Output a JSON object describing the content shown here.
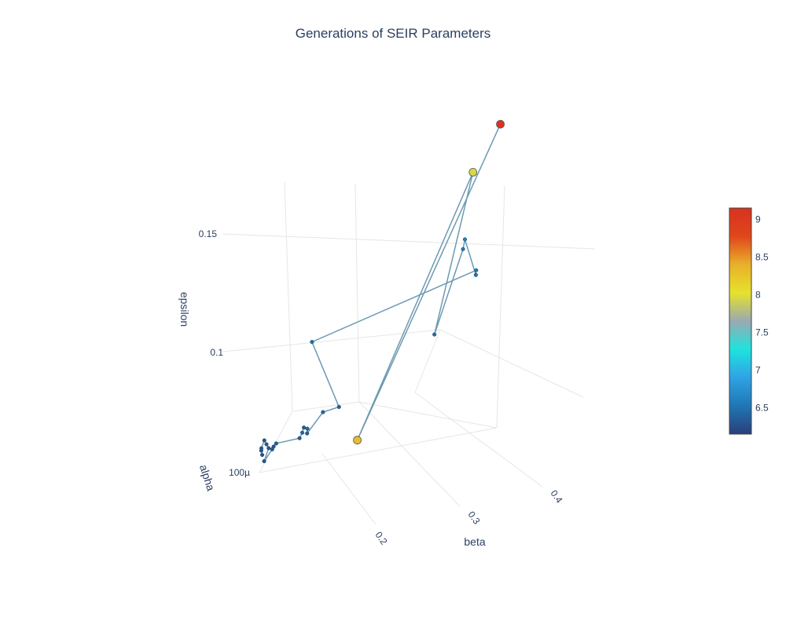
{
  "chart_data": {
    "type": "scatter3d",
    "title": "Generations of SEIR Parameters",
    "axes": {
      "x": {
        "label": "beta",
        "ticks": [
          "0.2",
          "0.3",
          "0.4"
        ],
        "range": [
          0.15,
          0.45
        ]
      },
      "y": {
        "label": "epsilon",
        "ticks": [
          "0.1",
          "0.15"
        ],
        "range": [
          0.05,
          0.17
        ]
      },
      "z": {
        "label": "alpha",
        "ticks": [
          "100µ"
        ]
      }
    },
    "colorbar": {
      "ticks": [
        "6.5",
        "7",
        "7.5",
        "8",
        "8.5",
        "9"
      ],
      "range": [
        6.15,
        9.15
      ],
      "colors": [
        "#2a3f7a",
        "#1f77b4",
        "#2fa3e6",
        "#1ee3dc",
        "#9aa9b2",
        "#e6e22c",
        "#e8b02a",
        "#e0461c",
        "#d8321f"
      ]
    },
    "points": [
      {
        "x": 0.15,
        "y": 0.062,
        "z": 0.0001,
        "c": 6.3
      },
      {
        "x": 0.151,
        "y": 0.06,
        "z": 0.0001,
        "c": 6.3
      },
      {
        "x": 0.15,
        "y": 0.063,
        "z": 0.0001,
        "c": 6.35
      },
      {
        "x": 0.152,
        "y": 0.066,
        "z": 0.0001,
        "c": 6.3
      },
      {
        "x": 0.154,
        "y": 0.064,
        "z": 0.0001,
        "c": 6.35
      },
      {
        "x": 0.156,
        "y": 0.062,
        "z": 0.0001,
        "c": 6.3
      },
      {
        "x": 0.153,
        "y": 0.057,
        "z": 0.0001,
        "c": 6.3
      },
      {
        "x": 0.159,
        "y": 0.061,
        "z": 0.0001,
        "c": 6.35
      },
      {
        "x": 0.16,
        "y": 0.062,
        "z": 0.0001,
        "c": 6.3
      },
      {
        "x": 0.162,
        "y": 0.063,
        "z": 0.0001,
        "c": 6.35
      },
      {
        "x": 0.181,
        "y": 0.062,
        "z": 0.0001,
        "c": 6.35
      },
      {
        "x": 0.183,
        "y": 0.064,
        "z": 0.0001,
        "c": 6.4
      },
      {
        "x": 0.184,
        "y": 0.066,
        "z": 0.0001,
        "c": 6.35
      },
      {
        "x": 0.187,
        "y": 0.065,
        "z": 0.0001,
        "c": 6.4
      },
      {
        "x": 0.187,
        "y": 0.063,
        "z": 0.0001,
        "c": 6.35
      },
      {
        "x": 0.199,
        "y": 0.07,
        "z": 0.0001,
        "c": 6.4
      },
      {
        "x": 0.212,
        "y": 0.07,
        "z": 0.0001,
        "c": 6.4
      },
      {
        "x": 0.186,
        "y": 0.102,
        "z": 0.0001,
        "c": 6.5
      },
      {
        "x": 0.318,
        "y": 0.11,
        "z": 0.0001,
        "c": 6.55
      },
      {
        "x": 0.318,
        "y": 0.108,
        "z": 0.0001,
        "c": 6.5
      },
      {
        "x": 0.307,
        "y": 0.125,
        "z": 0.0001,
        "c": 6.6
      },
      {
        "x": 0.306,
        "y": 0.121,
        "z": 0.0001,
        "c": 6.55
      },
      {
        "x": 0.287,
        "y": 0.088,
        "z": 0.0001,
        "c": 6.45
      },
      {
        "x": 0.31,
        "y": 0.153,
        "z": 0.0001,
        "c": 7.95
      },
      {
        "x": 0.229,
        "y": 0.053,
        "z": 0.0001,
        "c": 8.3
      },
      {
        "x": 0.33,
        "y": 0.17,
        "z": 0.0001,
        "c": 9.1
      }
    ]
  }
}
